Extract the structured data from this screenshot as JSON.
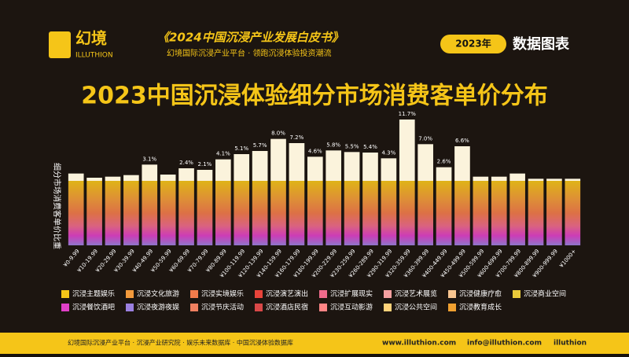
{
  "header": {
    "logo_cn": "幻境",
    "logo_en": "ILLUTHION",
    "book": "《2024中国沉浸产业发展白皮书》",
    "slogan": "幻境国际沉浸产业平台 · 领跑沉浸体验投资潮流",
    "year": "2023年",
    "section": "数据图表"
  },
  "chart_data": {
    "type": "bar",
    "title": "2023中国沉浸体验细分市场消费客单价分布",
    "y_label": "细分市场消费客单价比重",
    "categories": [
      "¥0-9.99",
      "¥10-19.99",
      "¥20-29.99",
      "¥30-39.99",
      "¥40-49.99",
      "¥50-59.99",
      "¥60-69.99",
      "¥70-79.99",
      "¥80-89.99",
      "¥100-119.99",
      "¥120-139.99",
      "¥140-159.99",
      "¥160-179.99",
      "¥180-199.99",
      "¥200-229.99",
      "¥230-259.99",
      "¥260-289.99",
      "¥290-319.99",
      "¥320-359.99",
      "¥360-399.99",
      "¥400-449.99",
      "¥450-499.99",
      "¥500-599.99",
      "¥600-699.99",
      "¥700-799.99",
      "¥800-899.99",
      "¥900-999.99",
      "¥1000+"
    ],
    "values": [
      1.4,
      0.6,
      0.8,
      1.1,
      3.1,
      1.2,
      2.4,
      2.1,
      4.1,
      5.1,
      5.7,
      8.0,
      7.2,
      4.6,
      5.8,
      5.5,
      5.4,
      4.3,
      11.7,
      7.0,
      2.6,
      6.6,
      0.8,
      0.8,
      1.4,
      0.4,
      0.4,
      0.4
    ],
    "value_labels": [
      null,
      null,
      null,
      null,
      "3.1%",
      null,
      "2.4%",
      "2.1%",
      "4.1%",
      "5.1%",
      "5.7%",
      "8.0%",
      "7.2%",
      "4.6%",
      "5.8%",
      "5.5%",
      "5.4%",
      "4.3%",
      "11.7%",
      "7.0%",
      "2.6%",
      "6.6%",
      null,
      null,
      null,
      null,
      null,
      null
    ],
    "color": "#fbf3dc",
    "ylim": [
      0,
      12
    ],
    "legend": [
      {
        "name": "沉浸主题娱乐",
        "color": "#f5c518"
      },
      {
        "name": "沉浸文化旅游",
        "color": "#f39a3c"
      },
      {
        "name": "沉浸实境娱乐",
        "color": "#f27b4b"
      },
      {
        "name": "沉浸演艺演出",
        "color": "#e8443a"
      },
      {
        "name": "沉浸扩展现实",
        "color": "#ef6b8c"
      },
      {
        "name": "沉浸艺术展览",
        "color": "#f4a0a0"
      },
      {
        "name": "沉浸健康疗愈",
        "color": "#f7c48f"
      },
      {
        "name": "沉浸商业空间",
        "color": "#e8c93a"
      },
      {
        "name": "沉浸餐饮酒吧",
        "color": "#e040c8"
      },
      {
        "name": "沉浸夜游夜娱",
        "color": "#9b80e0"
      },
      {
        "name": "沉浸节庆活动",
        "color": "#f08060"
      },
      {
        "name": "沉浸酒店民宿",
        "color": "#d94848"
      },
      {
        "name": "沉浸互动影游",
        "color": "#ff8585"
      },
      {
        "name": "沉浸公共空间",
        "color": "#ffd27a"
      },
      {
        "name": "沉浸教育成长",
        "color": "#f0a030"
      }
    ]
  },
  "footer": {
    "credit": "幻境国际沉浸产业平台 · 沉浸产业研究院 · 娱乐未来数据库 · 中国沉浸体验数据库",
    "web": "www.illuthion.com",
    "email": "info@illuthion.com",
    "wechat": "illuthion"
  }
}
